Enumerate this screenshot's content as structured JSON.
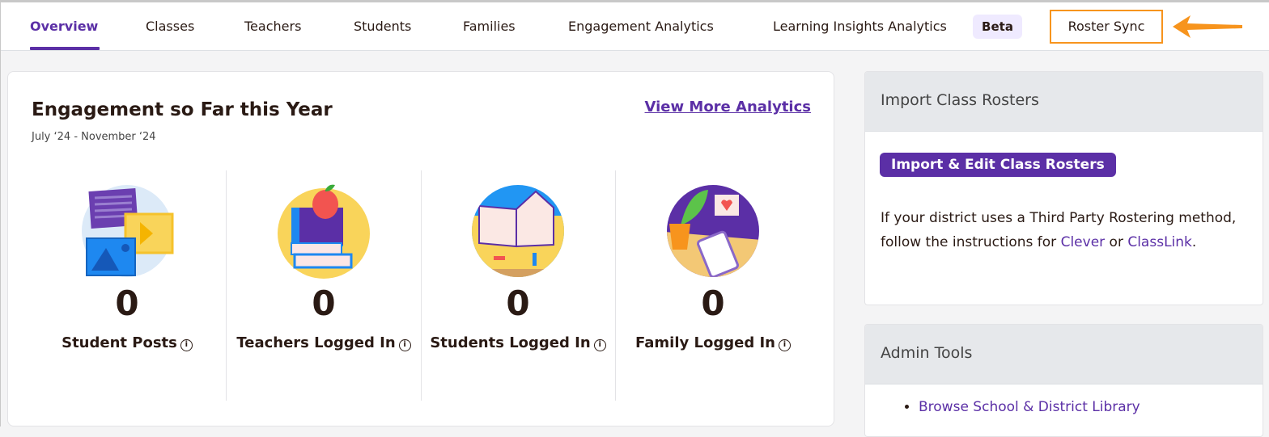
{
  "nav": {
    "tabs": [
      {
        "label": "Overview",
        "active": true
      },
      {
        "label": "Classes"
      },
      {
        "label": "Teachers"
      },
      {
        "label": "Students"
      },
      {
        "label": "Families"
      },
      {
        "label": "Engagement Analytics"
      },
      {
        "label": "Learning Insights Analytics"
      },
      {
        "label": "Roster Sync"
      }
    ],
    "beta_badge": "Beta"
  },
  "engagement": {
    "title": "Engagement so Far this Year",
    "date_range": "July ‘24 - November ‘24",
    "view_more": "View More Analytics",
    "stats": [
      {
        "value": "0",
        "label": "Student Posts",
        "icon": "media-posts-illustration"
      },
      {
        "value": "0",
        "label": "Teachers Logged In",
        "icon": "books-apple-illustration"
      },
      {
        "value": "0",
        "label": "Students Logged In",
        "icon": "open-book-illustration"
      },
      {
        "value": "0",
        "label": "Family Logged In",
        "icon": "plant-tablet-illustration"
      }
    ]
  },
  "import_panel": {
    "title": "Import Class Rosters",
    "button": "Import & Edit Class Rosters",
    "text_before": "If your district uses a Third Party Rostering method, follow the instructions for ",
    "clever": "Clever",
    "or": " or ",
    "classlink": "ClassLink",
    "period": "."
  },
  "admin_panel": {
    "title": "Admin Tools",
    "items": [
      "Browse School & District Library"
    ]
  },
  "colors": {
    "accent": "#5b2fa6",
    "highlight": "#f7941d"
  }
}
